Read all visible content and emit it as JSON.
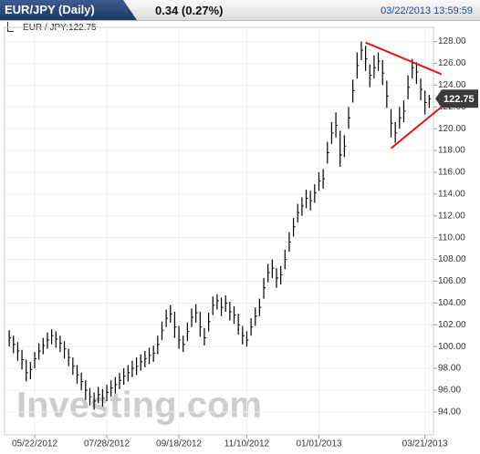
{
  "header": {
    "tab": "EUR/JPY (Daily)",
    "change": "0.34 (0.27%)",
    "timestamp": "03/22/2013 13:59:59",
    "quote": "EUR / JPY:122.75"
  },
  "chart_data": {
    "type": "ohlc",
    "categories": [
      null,
      null,
      null,
      null,
      null,
      null,
      "05/22/2012",
      null,
      null,
      null,
      null,
      null,
      null,
      null,
      null,
      null,
      null,
      null,
      null,
      null,
      null,
      null,
      null,
      "07/28/2012",
      null,
      null,
      null,
      null,
      null,
      null,
      null,
      null,
      null,
      null,
      null,
      null,
      null,
      null,
      null,
      null,
      "09/18/2012",
      null,
      null,
      null,
      null,
      null,
      null,
      null,
      null,
      null,
      null,
      null,
      null,
      null,
      null,
      null,
      "11/10/2012",
      null,
      null,
      null,
      null,
      null,
      null,
      null,
      null,
      null,
      null,
      null,
      null,
      null,
      null,
      null,
      null,
      "01/01/2013",
      null,
      null,
      null,
      null,
      null,
      null,
      null,
      null,
      null,
      null,
      null,
      null,
      null,
      null,
      null,
      null,
      null,
      null,
      null,
      null,
      null,
      null,
      null,
      null,
      "03/21/2013",
      null
    ],
    "high": [
      101.5,
      101.0,
      100.4,
      99.7,
      98.8,
      98.6,
      99.5,
      100.3,
      100.8,
      101.3,
      101.6,
      101.4,
      101.0,
      100.5,
      99.8,
      99.0,
      98.3,
      97.6,
      96.9,
      96.2,
      95.8,
      96.3,
      96.1,
      96.5,
      96.9,
      97.2,
      97.6,
      98.0,
      98.3,
      98.7,
      99.0,
      99.3,
      99.6,
      99.9,
      100.1,
      101.0,
      102.3,
      103.4,
      103.8,
      103.2,
      101.9,
      101.0,
      102.2,
      103.5,
      103.9,
      103.2,
      101.7,
      103.1,
      104.6,
      104.8,
      104.5,
      104.7,
      104.1,
      103.7,
      103.0,
      101.9,
      101.4,
      102.6,
      103.6,
      104.4,
      106.3,
      107.6,
      108.0,
      107.2,
      107.4,
      108.9,
      110.5,
      111.8,
      113.1,
      113.7,
      114.4,
      114.3,
      114.9,
      116.0,
      116.3,
      118.8,
      120.6,
      121.5,
      119.8,
      119.4,
      122.0,
      124.5,
      127.0,
      128.0,
      127.6,
      125.9,
      126.7,
      127.0,
      126.3,
      124.4,
      121.8,
      120.6,
      122.0,
      122.6,
      124.9,
      126.4,
      126.1,
      124.6,
      123.5,
      123.1
    ],
    "low": [
      100.0,
      99.4,
      98.7,
      97.9,
      96.8,
      97.0,
      98.0,
      98.8,
      99.3,
      99.8,
      100.2,
      99.9,
      99.5,
      98.9,
      98.2,
      97.4,
      96.6,
      96.0,
      95.1,
      94.6,
      94.2,
      94.8,
      94.5,
      95.0,
      95.4,
      95.7,
      96.1,
      96.5,
      96.8,
      97.2,
      97.4,
      97.8,
      98.1,
      98.4,
      98.6,
      99.3,
      100.6,
      101.8,
      102.2,
      100.8,
      99.8,
      99.5,
      100.5,
      101.8,
      102.2,
      100.9,
      100.1,
      101.4,
      102.9,
      103.4,
      102.8,
      103.2,
      102.4,
      102.1,
      101.1,
      100.2,
      100.0,
      101.0,
      101.9,
      102.8,
      104.4,
      105.9,
      106.3,
      105.4,
      105.7,
      107.1,
      108.7,
      110.1,
      111.4,
      112.0,
      112.7,
      112.5,
      113.2,
      114.3,
      114.5,
      116.8,
      118.6,
      119.2,
      116.5,
      117.4,
      120.0,
      122.4,
      124.6,
      126.3,
      125.3,
      123.8,
      124.6,
      125.3,
      124.0,
      121.9,
      119.2,
      118.7,
      120.0,
      120.6,
      122.7,
      124.6,
      124.1,
      122.6,
      121.3,
      121.9
    ],
    "close": [
      100.8,
      100.2,
      99.6,
      98.8,
      97.6,
      97.9,
      98.9,
      99.6,
      100.1,
      100.6,
      101.0,
      100.7,
      100.3,
      99.8,
      99.0,
      98.2,
      97.4,
      96.8,
      96.0,
      95.4,
      95.0,
      95.6,
      95.3,
      95.8,
      96.2,
      96.5,
      96.9,
      97.3,
      97.6,
      98.0,
      98.2,
      98.6,
      98.9,
      99.2,
      99.4,
      100.2,
      101.5,
      102.6,
      103.0,
      101.8,
      100.6,
      100.2,
      101.4,
      102.7,
      103.1,
      101.8,
      100.8,
      102.3,
      103.8,
      104.2,
      103.6,
      104.0,
      103.2,
      102.9,
      102.0,
      101.0,
      100.6,
      101.8,
      102.8,
      103.6,
      105.4,
      106.8,
      107.2,
      106.3,
      106.6,
      108.0,
      109.6,
      111.0,
      112.3,
      112.9,
      113.6,
      113.4,
      114.1,
      115.2,
      115.4,
      117.8,
      119.6,
      120.3,
      117.6,
      118.4,
      121.0,
      123.5,
      125.8,
      127.2,
      126.4,
      124.9,
      125.6,
      126.2,
      125.1,
      123.0,
      120.5,
      119.6,
      121.0,
      121.6,
      123.8,
      125.6,
      125.2,
      123.6,
      122.4,
      122.75
    ],
    "color": "#000000",
    "xlim": [
      -1.1,
      100
    ],
    "ylim": [
      91.9,
      129.3
    ],
    "yticks": [
      {
        "value": 94,
        "label": "94.00"
      },
      {
        "value": 96,
        "label": "96.00"
      },
      {
        "value": 98,
        "label": "98.00"
      },
      {
        "value": 100,
        "label": "100.00"
      },
      {
        "value": 102,
        "label": "102.00"
      },
      {
        "value": 104,
        "label": "104.00"
      },
      {
        "value": 106,
        "label": "106.00"
      },
      {
        "value": 108,
        "label": "108.00"
      },
      {
        "value": 110,
        "label": "110.00"
      },
      {
        "value": 112,
        "label": "112.00"
      },
      {
        "value": 114,
        "label": "114.00"
      },
      {
        "value": 116,
        "label": "116.00"
      },
      {
        "value": 118,
        "label": "118.00"
      },
      {
        "value": 120,
        "label": "120.00"
      },
      {
        "value": 122,
        "label": "122.00"
      },
      {
        "value": 124,
        "label": "124.00"
      },
      {
        "value": 126,
        "label": "126.00"
      },
      {
        "value": 128,
        "label": "128.00"
      }
    ],
    "grid": true,
    "last_price": {
      "value": 122.75,
      "label": "122.75"
    },
    "trendlines": [
      {
        "x": [
          84,
          101.9
        ],
        "y": [
          127.9,
          125.0
        ]
      },
      {
        "x": [
          90,
          101.9
        ],
        "y": [
          118.2,
          122.0
        ]
      }
    ],
    "trendline_color": "#e8141b",
    "watermark": "Investing.com"
  }
}
